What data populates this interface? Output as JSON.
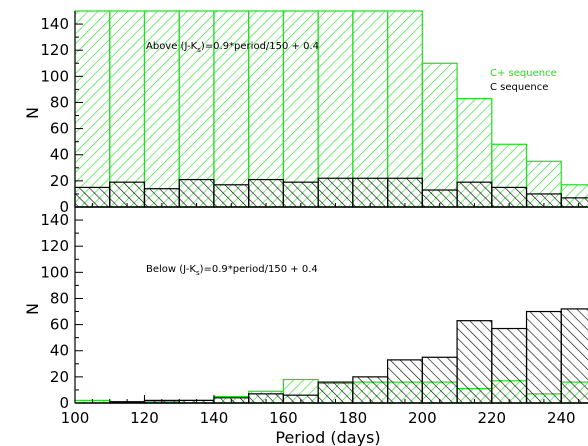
{
  "chart_data": [
    {
      "type": "bar",
      "panel": "top",
      "ylabel": "N",
      "xlim": [
        100,
        250
      ],
      "ylim": [
        0,
        150
      ],
      "yticks": [
        0,
        20,
        40,
        60,
        80,
        100,
        120,
        140
      ],
      "bin_width": 10,
      "x": [
        100,
        110,
        120,
        130,
        140,
        150,
        160,
        170,
        180,
        190,
        200,
        210,
        220,
        230,
        240
      ],
      "annotation": {
        "prefix": "Above (J-K",
        "sub": "s",
        "suffix": ")=0.9*period/150 + 0.4"
      },
      "legend_placement": "right",
      "series": [
        {
          "name": "C+ sequence",
          "color": "#22dd22",
          "hatch": "forward",
          "values": [
            150,
            150,
            150,
            150,
            150,
            150,
            150,
            150,
            150,
            150,
            110,
            83,
            48,
            35,
            17
          ]
        },
        {
          "name": "C sequence",
          "color": "#000000",
          "hatch": "backward",
          "values": [
            15,
            19,
            14,
            21,
            17,
            21,
            19,
            22,
            22,
            22,
            13,
            19,
            15,
            10,
            7
          ]
        }
      ]
    },
    {
      "type": "bar",
      "panel": "bottom",
      "xlabel": "Period (days)",
      "ylabel": "N",
      "xlim": [
        100,
        250
      ],
      "ylim": [
        0,
        150
      ],
      "yticks": [
        0,
        20,
        40,
        60,
        80,
        100,
        120,
        140
      ],
      "xticks": [
        100,
        120,
        140,
        160,
        180,
        200,
        220,
        240
      ],
      "bin_width": 10,
      "x": [
        100,
        110,
        120,
        130,
        140,
        150,
        160,
        170,
        180,
        190,
        200,
        210,
        220,
        230,
        240
      ],
      "annotation": {
        "prefix": "Below (J-K",
        "sub": "s",
        "suffix": ")=0.9*period/150 + 0.4"
      },
      "series": [
        {
          "name": "C+ sequence",
          "color": "#22dd22",
          "hatch": "forward",
          "values": [
            2,
            0,
            1,
            2,
            5,
            9,
            18,
            15,
            16,
            16,
            16,
            11,
            17,
            7,
            16
          ]
        },
        {
          "name": "C sequence",
          "color": "#000000",
          "hatch": "backward",
          "values": [
            0,
            1,
            2,
            2,
            4,
            7,
            6,
            16,
            20,
            33,
            35,
            63,
            57,
            70,
            72
          ]
        }
      ]
    }
  ]
}
